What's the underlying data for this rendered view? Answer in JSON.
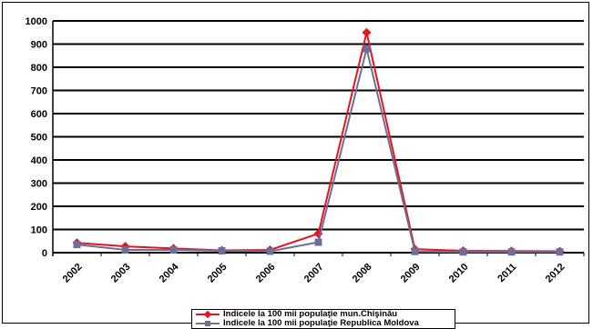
{
  "chart_data": {
    "type": "line",
    "categories": [
      "2002",
      "2003",
      "2004",
      "2005",
      "2006",
      "2007",
      "2008",
      "2009",
      "2010",
      "2011",
      "2012"
    ],
    "series": [
      {
        "name": "Indicele  la 100 mii populaţie mun.Chişinău",
        "color": "#e8131b",
        "marker": "diamond",
        "values": [
          42,
          27,
          18,
          10,
          12,
          82,
          950,
          15,
          8,
          7,
          6
        ]
      },
      {
        "name": "Indicele  la 100 mii populaţie Republica Moldova",
        "color": "#6e6e9a",
        "marker": "square",
        "values": [
          35,
          12,
          12,
          8,
          6,
          45,
          880,
          5,
          3,
          3,
          3
        ]
      }
    ],
    "yticks": [
      "0",
      "100",
      "200",
      "300",
      "400",
      "500",
      "600",
      "700",
      "800",
      "900",
      "1000"
    ],
    "ylim": [
      0,
      1000
    ],
    "grid": true,
    "legend_position": "bottom"
  }
}
